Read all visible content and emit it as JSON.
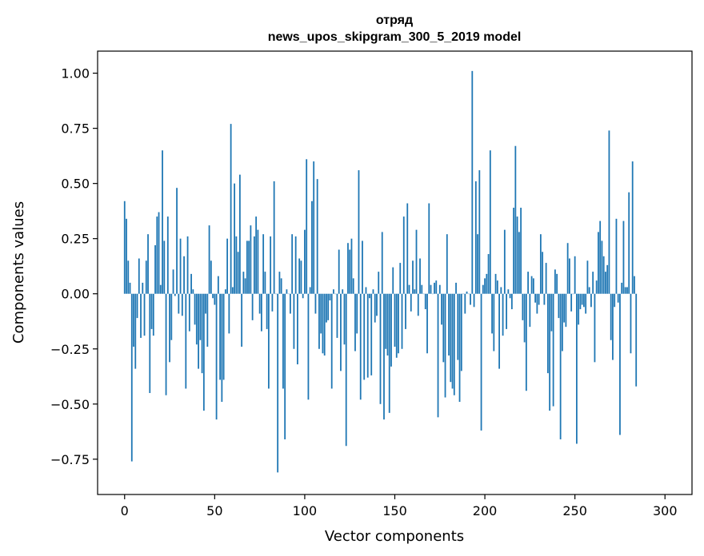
{
  "chart_data": {
    "type": "bar",
    "title_line1": "отряд",
    "title_line2": "news_upos_skipgram_300_5_2019 model",
    "xlabel": "Vector components",
    "ylabel": "Components values",
    "xlim": [
      -15,
      315
    ],
    "ylim": [
      -0.91,
      1.1
    ],
    "xticks": [
      0,
      50,
      100,
      150,
      200,
      250,
      300
    ],
    "xtick_labels": [
      "0",
      "50",
      "100",
      "150",
      "200",
      "250",
      "300"
    ],
    "yticks": [
      -0.75,
      -0.5,
      -0.25,
      0.0,
      0.25,
      0.5,
      0.75,
      1.0
    ],
    "ytick_labels": [
      "−0.75",
      "−0.50",
      "−0.25",
      "0.00",
      "0.25",
      "0.50",
      "0.75",
      "1.00"
    ],
    "bar_color": "#1f77b4",
    "grid": false,
    "values": [
      0.42,
      0.34,
      0.15,
      0.05,
      -0.76,
      -0.24,
      -0.34,
      -0.11,
      0.16,
      -0.2,
      0.05,
      -0.19,
      0.15,
      0.27,
      -0.45,
      -0.16,
      -0.19,
      0.22,
      0.35,
      0.37,
      0.04,
      0.65,
      0.24,
      -0.46,
      0.35,
      -0.31,
      -0.21,
      0.11,
      -0.01,
      0.48,
      -0.09,
      0.25,
      -0.1,
      0.17,
      -0.43,
      0.26,
      -0.17,
      0.09,
      0.02,
      -0.14,
      -0.23,
      -0.34,
      -0.21,
      -0.36,
      -0.53,
      -0.09,
      -0.24,
      0.31,
      0.15,
      -0.02,
      -0.05,
      -0.57,
      0.08,
      -0.39,
      -0.49,
      -0.39,
      0.02,
      0.25,
      -0.18,
      0.77,
      0.03,
      0.5,
      0.26,
      0.19,
      0.54,
      -0.24,
      0.1,
      0.07,
      0.24,
      0.24,
      0.31,
      -0.12,
      0.26,
      0.35,
      0.29,
      -0.09,
      -0.17,
      0.27,
      0.1,
      -0.16,
      -0.43,
      0.26,
      -0.08,
      0.51,
      0.0,
      -0.81,
      0.1,
      0.07,
      -0.43,
      -0.66,
      0.02,
      0.0,
      -0.09,
      0.27,
      -0.25,
      0.26,
      -0.32,
      0.16,
      0.15,
      -0.02,
      0.29,
      0.61,
      -0.48,
      0.03,
      0.42,
      0.6,
      -0.09,
      0.52,
      -0.25,
      -0.18,
      -0.27,
      -0.28,
      -0.13,
      -0.12,
      -0.03,
      -0.43,
      0.02,
      0.0,
      -0.2,
      0.2,
      -0.35,
      0.02,
      -0.23,
      -0.69,
      0.23,
      0.2,
      0.25,
      0.07,
      -0.26,
      -0.18,
      0.56,
      -0.48,
      0.24,
      -0.39,
      0.03,
      -0.38,
      -0.02,
      -0.37,
      0.02,
      -0.13,
      -0.1,
      0.1,
      -0.5,
      0.28,
      -0.57,
      -0.25,
      -0.28,
      -0.54,
      -0.33,
      0.12,
      -0.24,
      -0.29,
      -0.27,
      0.14,
      -0.25,
      0.35,
      -0.16,
      0.41,
      0.04,
      -0.08,
      0.15,
      0.02,
      0.29,
      -0.1,
      0.16,
      0.04,
      0.0,
      -0.07,
      -0.27,
      0.41,
      0.04,
      0.0,
      0.05,
      0.06,
      -0.56,
      0.04,
      -0.14,
      -0.31,
      -0.47,
      0.27,
      -0.28,
      -0.4,
      -0.43,
      -0.46,
      0.05,
      -0.3,
      -0.49,
      -0.35,
      0.0,
      -0.09,
      0.01,
      0.0,
      -0.05,
      1.01,
      -0.06,
      0.51,
      0.27,
      0.56,
      -0.62,
      0.04,
      0.07,
      0.09,
      0.18,
      0.65,
      -0.18,
      -0.26,
      0.09,
      0.06,
      -0.34,
      0.03,
      -0.19,
      0.29,
      -0.16,
      0.02,
      -0.02,
      -0.07,
      0.39,
      0.67,
      0.35,
      0.28,
      0.39,
      -0.12,
      -0.22,
      -0.44,
      0.1,
      -0.15,
      0.08,
      0.07,
      -0.04,
      -0.09,
      -0.05,
      0.27,
      0.19,
      -0.05,
      0.14,
      -0.36,
      -0.53,
      -0.17,
      -0.51,
      0.11,
      0.09,
      -0.11,
      -0.66,
      -0.26,
      -0.13,
      -0.15,
      0.23,
      0.16,
      -0.08,
      0.0,
      0.17,
      -0.68,
      -0.14,
      -0.07,
      -0.05,
      -0.06,
      -0.09,
      0.15,
      0.03,
      -0.06,
      0.1,
      -0.31,
      0.06,
      0.28,
      0.33,
      0.24,
      0.17,
      0.1,
      0.13,
      0.74,
      -0.21,
      -0.3,
      -0.06,
      0.34,
      -0.04,
      -0.64,
      0.05,
      0.33,
      0.03,
      0.03,
      0.46,
      -0.27,
      0.6,
      0.08,
      -0.42
    ]
  }
}
